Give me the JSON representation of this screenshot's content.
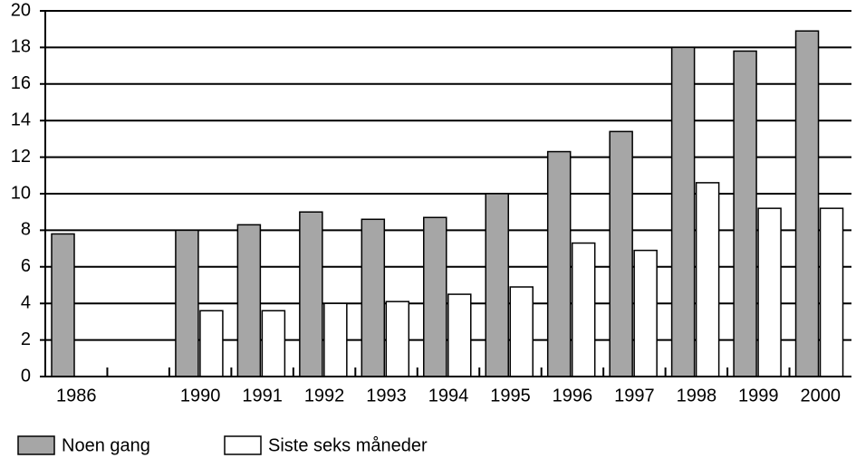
{
  "chart_data": {
    "type": "bar",
    "categories": [
      "1986",
      null,
      "1990",
      "1991",
      "1992",
      "1993",
      "1994",
      "1995",
      "1996",
      "1997",
      "1998",
      "1999",
      "2000"
    ],
    "series": [
      {
        "name": "Noen gang",
        "color": "#a6a6a6",
        "values": [
          7.8,
          null,
          8,
          8.3,
          9,
          8.6,
          8.7,
          10,
          12.3,
          13.4,
          18,
          17.8,
          18.9
        ]
      },
      {
        "name": "Siste seks måneder",
        "color": "#ffffff",
        "values": [
          null,
          null,
          3.6,
          3.6,
          4,
          4.1,
          4.5,
          4.9,
          7.3,
          6.9,
          10.6,
          9.2,
          9.2
        ]
      }
    ],
    "ylim": [
      0,
      20
    ],
    "yticks": [
      0,
      2,
      4,
      6,
      8,
      10,
      12,
      14,
      16,
      18,
      20
    ],
    "grid": true,
    "legend": "bottom"
  }
}
